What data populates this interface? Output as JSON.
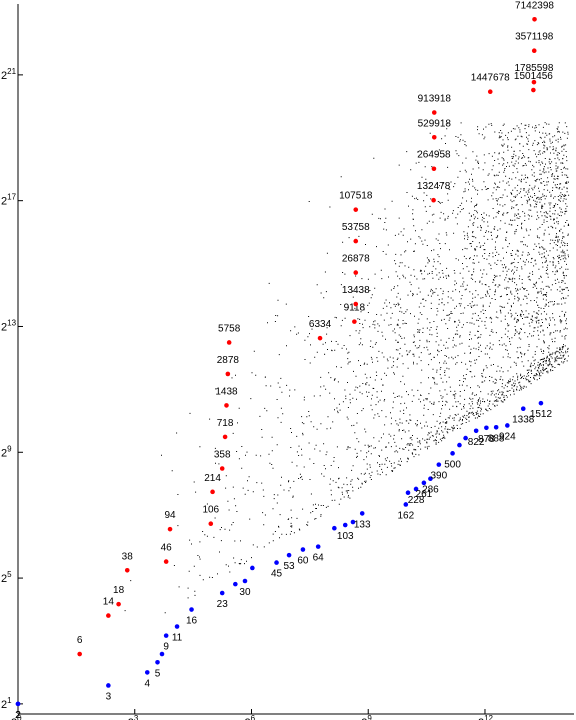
{
  "chart_data": {
    "type": "scatter",
    "title": "",
    "xlabel": "",
    "ylabel": "",
    "x_scale": "log2",
    "y_scale": "log2",
    "xlim": [
      1,
      20000
    ],
    "ylim": [
      1.6,
      10000000
    ],
    "grid": false,
    "x_ticks": [
      {
        "base": "2",
        "exp": "0",
        "value": 1
      },
      {
        "base": "2",
        "exp": "3",
        "value": 8
      },
      {
        "base": "2",
        "exp": "6",
        "value": 64
      },
      {
        "base": "2",
        "exp": "9",
        "value": 512
      },
      {
        "base": "2",
        "exp": "12",
        "value": 4096
      }
    ],
    "y_ticks": [
      {
        "base": "2",
        "exp": "1",
        "value": 2
      },
      {
        "base": "2",
        "exp": "5",
        "value": 32
      },
      {
        "base": "2",
        "exp": "9",
        "value": 512
      },
      {
        "base": "2",
        "exp": "13",
        "value": 8192
      },
      {
        "base": "2",
        "exp": "17",
        "value": 131072
      },
      {
        "base": "2",
        "exp": "21",
        "value": 2097152
      }
    ],
    "series": [
      {
        "color": "#ff0000",
        "points": [
          {
            "x": 3,
            "y": 6,
            "label": "6"
          },
          {
            "x": 5,
            "y": 14,
            "label": "14"
          },
          {
            "x": 6,
            "y": 18,
            "label": "18"
          },
          {
            "x": 7,
            "y": 38,
            "label": "38"
          },
          {
            "x": 14,
            "y": 46,
            "label": "46"
          },
          {
            "x": 15,
            "y": 94,
            "label": "94"
          },
          {
            "x": 31,
            "y": 106,
            "label": "106"
          },
          {
            "x": 32,
            "y": 214,
            "label": "214"
          },
          {
            "x": 38,
            "y": 358,
            "label": "358"
          },
          {
            "x": 40,
            "y": 718,
            "label": "718"
          },
          {
            "x": 41,
            "y": 1438,
            "label": "1438"
          },
          {
            "x": 42,
            "y": 2878,
            "label": "2878"
          },
          {
            "x": 43,
            "y": 5758,
            "label": "5758"
          },
          {
            "x": 217,
            "y": 6334,
            "label": "6334"
          },
          {
            "x": 400,
            "y": 9118,
            "label": "9118"
          },
          {
            "x": 410,
            "y": 13438,
            "label": "13438"
          },
          {
            "x": 410,
            "y": 26878,
            "label": "26878"
          },
          {
            "x": 410,
            "y": 53758,
            "label": "53758"
          },
          {
            "x": 410,
            "y": 107518,
            "label": "107518"
          },
          {
            "x": 1640,
            "y": 132478,
            "label": "132478"
          },
          {
            "x": 1650,
            "y": 264958,
            "label": "264958"
          },
          {
            "x": 1660,
            "y": 529918,
            "label": "529918"
          },
          {
            "x": 1660,
            "y": 913918,
            "label": "913918"
          },
          {
            "x": 4500,
            "y": 1447678,
            "label": "1447678"
          },
          {
            "x": 9700,
            "y": 1501456,
            "label": "1501456"
          },
          {
            "x": 9800,
            "y": 1785598,
            "label": "1785598"
          },
          {
            "x": 9850,
            "y": 3571198,
            "label": "3571198"
          },
          {
            "x": 9900,
            "y": 7142398,
            "label": "7142398"
          }
        ]
      },
      {
        "color": "#0000ff",
        "points": [
          {
            "x": 1,
            "y": 2,
            "label": "2"
          },
          {
            "x": 1,
            "y": 2,
            "label": "2"
          },
          {
            "x": 5,
            "y": 3,
            "label": "3"
          },
          {
            "x": 10,
            "y": 4,
            "label": "4"
          },
          {
            "x": 12,
            "y": 5,
            "label": "5"
          },
          {
            "x": 13,
            "y": 6,
            "label": ""
          },
          {
            "x": 14,
            "y": 9,
            "label": "9"
          },
          {
            "x": 17,
            "y": 11,
            "label": "11"
          },
          {
            "x": 22,
            "y": 16,
            "label": "16"
          },
          {
            "x": 38,
            "y": 23,
            "label": "23"
          },
          {
            "x": 48,
            "y": 28,
            "label": ""
          },
          {
            "x": 57,
            "y": 30,
            "label": "30"
          },
          {
            "x": 65,
            "y": 40,
            "label": ""
          },
          {
            "x": 100,
            "y": 45,
            "label": "45"
          },
          {
            "x": 125,
            "y": 53,
            "label": "53"
          },
          {
            "x": 160,
            "y": 60,
            "label": "60"
          },
          {
            "x": 210,
            "y": 64,
            "label": "64"
          },
          {
            "x": 280,
            "y": 96,
            "label": ""
          },
          {
            "x": 340,
            "y": 103,
            "label": "103"
          },
          {
            "x": 390,
            "y": 110,
            "label": ""
          },
          {
            "x": 460,
            "y": 133,
            "label": "133"
          },
          {
            "x": 1000,
            "y": 162,
            "label": "162"
          },
          {
            "x": 1040,
            "y": 210,
            "label": ""
          },
          {
            "x": 1200,
            "y": 228,
            "label": "228"
          },
          {
            "x": 1380,
            "y": 261,
            "label": "261"
          },
          {
            "x": 1550,
            "y": 286,
            "label": "286"
          },
          {
            "x": 1800,
            "y": 390,
            "label": "390"
          },
          {
            "x": 2300,
            "y": 500,
            "label": "500"
          },
          {
            "x": 2600,
            "y": 600,
            "label": ""
          },
          {
            "x": 2900,
            "y": 700,
            "label": ""
          },
          {
            "x": 3500,
            "y": 822,
            "label": "822"
          },
          {
            "x": 4200,
            "y": 878,
            "label": "878"
          },
          {
            "x": 5000,
            "y": 888,
            "label": "888"
          },
          {
            "x": 6100,
            "y": 924,
            "label": "924"
          },
          {
            "x": 8100,
            "y": 1338,
            "label": "1338"
          },
          {
            "x": 11100,
            "y": 1512,
            "label": "1512"
          }
        ]
      },
      {
        "color": "#000000",
        "cloud": {
          "count": 16000,
          "xmin": 4,
          "xmax": 18000
        }
      }
    ]
  }
}
